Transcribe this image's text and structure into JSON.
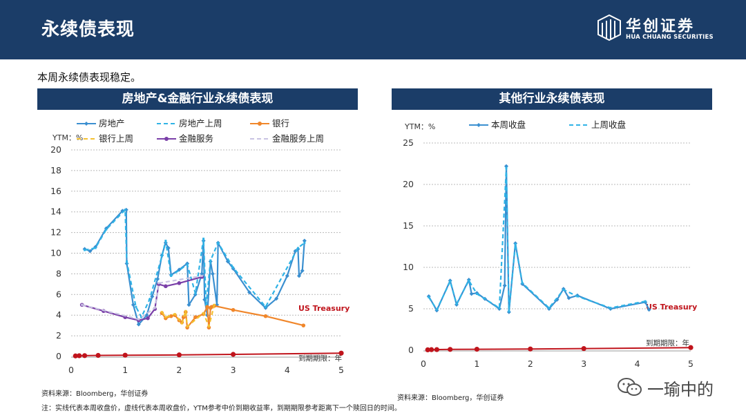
{
  "header": {
    "title": "永续债表现"
  },
  "logo": {
    "cn": "华创证券",
    "en": "HUA CHUANG SECURITIES"
  },
  "subtitle": "本周永续债表现稳定。",
  "colors": {
    "navy": "#1b3d68",
    "fangdichan": "#3a8fd0",
    "fangdichan_prev": "#2fb3e6",
    "bank": "#f0862a",
    "bank_prev": "#f4c030",
    "finance": "#7a3fa8",
    "finance_prev": "#c8c2e2",
    "treasury": "#c0141c"
  },
  "footer": {
    "source_left": "资料来源：Bloomberg，华创证券",
    "note": "注：实线代表本周收盘价，虚线代表本周收盘价，YTM参考中价到期收益率，到期期限参考距离下一个赎回日的时间。",
    "source_right": "资料来源：Bloomberg，华创证券"
  },
  "watermark": {
    "text": "一瑜中的",
    "icon": "wechat-icon"
  },
  "chart_data": [
    {
      "type": "line",
      "title": "房地产&金融行业永续债表现",
      "ylabel": "YTM：%",
      "xlabel": "到期期限：年",
      "xlim": [
        0,
        5
      ],
      "ylim": [
        0,
        20
      ],
      "xticks": [
        0,
        1,
        2,
        3,
        4,
        5
      ],
      "yticks": [
        0,
        2,
        4,
        6,
        8,
        10,
        12,
        14,
        16,
        18,
        20
      ],
      "grid": true,
      "legend_position": "top",
      "annotation": "US Treasury",
      "series": [
        {
          "name": "房地产",
          "style": "solid",
          "color_key": "fangdichan",
          "points": [
            [
              0.25,
              10.4
            ],
            [
              0.35,
              10.2
            ],
            [
              0.45,
              10.6
            ],
            [
              0.65,
              12.4
            ],
            [
              0.95,
              14.1
            ],
            [
              1.02,
              14.2
            ],
            [
              1.03,
              9.0
            ],
            [
              1.15,
              5.0
            ],
            [
              1.25,
              3.1
            ],
            [
              1.4,
              4.0
            ],
            [
              1.5,
              5.8
            ],
            [
              1.6,
              7.5
            ],
            [
              1.68,
              9.8
            ],
            [
              1.75,
              11.0
            ],
            [
              1.8,
              10.5
            ],
            [
              1.85,
              7.9
            ],
            [
              2.0,
              8.4
            ],
            [
              2.15,
              9.0
            ],
            [
              2.18,
              5.0
            ],
            [
              2.3,
              6.0
            ],
            [
              2.42,
              8.0
            ],
            [
              2.45,
              11.2
            ],
            [
              2.47,
              5.5
            ],
            [
              2.52,
              4.0
            ],
            [
              2.58,
              9.2
            ],
            [
              2.62,
              8.0
            ],
            [
              2.7,
              5.0
            ],
            [
              2.72,
              11.0
            ],
            [
              2.9,
              9.2
            ],
            [
              3.0,
              8.5
            ],
            [
              3.3,
              6.2
            ],
            [
              3.6,
              4.7
            ],
            [
              3.8,
              5.6
            ],
            [
              4.0,
              7.8
            ],
            [
              4.15,
              10.2
            ],
            [
              4.2,
              10.4
            ],
            [
              4.22,
              7.8
            ],
            [
              4.28,
              8.3
            ],
            [
              4.32,
              11.2
            ]
          ]
        },
        {
          "name": "房地产上周",
          "style": "dash",
          "color_key": "fangdichan_prev",
          "points": [
            [
              0.25,
              10.3
            ],
            [
              0.45,
              10.5
            ],
            [
              0.65,
              12.3
            ],
            [
              1.0,
              14.2
            ],
            [
              1.03,
              9.2
            ],
            [
              1.2,
              4.8
            ],
            [
              1.3,
              3.8
            ],
            [
              1.45,
              5.5
            ],
            [
              1.68,
              9.7
            ],
            [
              1.75,
              11.2
            ],
            [
              1.85,
              7.8
            ],
            [
              2.15,
              8.9
            ],
            [
              2.3,
              6.1
            ],
            [
              2.45,
              11.4
            ],
            [
              2.5,
              5.0
            ],
            [
              2.58,
              9.3
            ],
            [
              2.72,
              11.0
            ],
            [
              3.0,
              8.6
            ],
            [
              3.6,
              4.8
            ],
            [
              4.2,
              10.5
            ],
            [
              4.32,
              11.0
            ]
          ]
        },
        {
          "name": "银行",
          "style": "solid",
          "color_key": "bank",
          "points": [
            [
              1.68,
              4.2
            ],
            [
              1.75,
              3.7
            ],
            [
              1.85,
              3.9
            ],
            [
              1.92,
              4.0
            ],
            [
              2.0,
              3.5
            ],
            [
              2.05,
              3.3
            ],
            [
              2.08,
              3.8
            ],
            [
              2.12,
              4.3
            ],
            [
              2.15,
              2.8
            ],
            [
              2.3,
              3.8
            ],
            [
              2.45,
              4.1
            ],
            [
              2.52,
              4.8
            ],
            [
              2.55,
              2.8
            ],
            [
              2.58,
              4.7
            ],
            [
              2.6,
              4.8
            ],
            [
              2.65,
              4.9
            ],
            [
              3.0,
              4.5
            ],
            [
              3.6,
              3.9
            ],
            [
              4.3,
              3.0
            ]
          ]
        },
        {
          "name": "银行上周",
          "style": "dash",
          "color_key": "bank_prev",
          "points": [
            [
              1.68,
              4.3
            ],
            [
              1.75,
              3.8
            ],
            [
              1.92,
              4.1
            ],
            [
              2.05,
              3.2
            ],
            [
              2.12,
              4.4
            ],
            [
              2.15,
              2.9
            ],
            [
              2.45,
              4.2
            ],
            [
              2.55,
              2.9
            ],
            [
              2.65,
              5.0
            ]
          ]
        },
        {
          "name": "金融服务",
          "style": "solid",
          "color_key": "finance",
          "points": [
            [
              0.2,
              5.0
            ],
            [
              0.6,
              4.4
            ],
            [
              1.0,
              3.8
            ],
            [
              1.25,
              3.5
            ],
            [
              1.42,
              3.7
            ],
            [
              1.55,
              4.6
            ],
            [
              1.62,
              7.0
            ],
            [
              1.75,
              6.8
            ],
            [
              2.0,
              7.1
            ],
            [
              2.42,
              7.7
            ]
          ]
        },
        {
          "name": "金融服务上周",
          "style": "dash",
          "color_key": "finance_prev",
          "points": [
            [
              0.2,
              5.0
            ],
            [
              1.25,
              3.6
            ],
            [
              1.55,
              4.7
            ],
            [
              1.62,
              7.1
            ],
            [
              2.42,
              7.8
            ]
          ]
        },
        {
          "name": "US Treasury",
          "style": "solid",
          "color_key": "treasury",
          "legend": false,
          "points": [
            [
              0.08,
              0.05
            ],
            [
              0.15,
              0.07
            ],
            [
              0.25,
              0.08
            ],
            [
              0.5,
              0.1
            ],
            [
              1.0,
              0.12
            ],
            [
              2.0,
              0.15
            ],
            [
              3.0,
              0.2
            ],
            [
              5.0,
              0.32
            ]
          ]
        }
      ]
    },
    {
      "type": "line",
      "title": "其他行业永续债表现",
      "ylabel": "YTM：%",
      "xlabel": "到期期限：年",
      "xlim": [
        0,
        5
      ],
      "ylim": [
        0,
        25
      ],
      "xticks": [
        0,
        1,
        2,
        3,
        4,
        5
      ],
      "yticks": [
        0,
        5,
        10,
        15,
        20,
        25
      ],
      "grid": true,
      "legend_position": "top",
      "annotation": "US Treasury",
      "series": [
        {
          "name": "本周收盘",
          "style": "solid",
          "color_key": "fangdichan",
          "points": [
            [
              0.1,
              6.5
            ],
            [
              0.25,
              4.8
            ],
            [
              0.5,
              8.4
            ],
            [
              0.62,
              5.5
            ],
            [
              0.85,
              8.5
            ],
            [
              0.9,
              6.8
            ],
            [
              1.0,
              6.9
            ],
            [
              1.15,
              6.2
            ],
            [
              1.42,
              5.0
            ],
            [
              1.52,
              7.8
            ],
            [
              1.55,
              22.2
            ],
            [
              1.6,
              4.6
            ],
            [
              1.72,
              12.9
            ],
            [
              1.85,
              8.0
            ],
            [
              2.35,
              5.0
            ],
            [
              2.5,
              6.1
            ],
            [
              2.62,
              7.4
            ],
            [
              2.72,
              6.3
            ],
            [
              2.88,
              6.6
            ],
            [
              3.5,
              5.0
            ],
            [
              4.15,
              5.8
            ],
            [
              4.22,
              4.9
            ]
          ]
        },
        {
          "name": "上周收盘",
          "style": "dash",
          "color_key": "fangdichan_prev",
          "points": [
            [
              0.1,
              6.4
            ],
            [
              0.25,
              4.9
            ],
            [
              0.5,
              8.3
            ],
            [
              0.62,
              5.6
            ],
            [
              0.85,
              8.4
            ],
            [
              1.0,
              6.8
            ],
            [
              1.42,
              5.1
            ],
            [
              1.55,
              22.0
            ],
            [
              1.6,
              4.7
            ],
            [
              1.72,
              12.8
            ],
            [
              1.85,
              8.1
            ],
            [
              2.35,
              5.1
            ],
            [
              2.62,
              7.3
            ],
            [
              2.88,
              6.5
            ],
            [
              3.5,
              5.1
            ],
            [
              4.15,
              5.9
            ]
          ]
        },
        {
          "name": "US Treasury",
          "style": "solid",
          "color_key": "treasury",
          "legend": false,
          "points": [
            [
              0.08,
              0.05
            ],
            [
              0.15,
              0.07
            ],
            [
              0.25,
              0.08
            ],
            [
              0.5,
              0.1
            ],
            [
              1.0,
              0.12
            ],
            [
              2.0,
              0.15
            ],
            [
              3.0,
              0.2
            ],
            [
              5.0,
              0.32
            ]
          ]
        }
      ]
    }
  ]
}
